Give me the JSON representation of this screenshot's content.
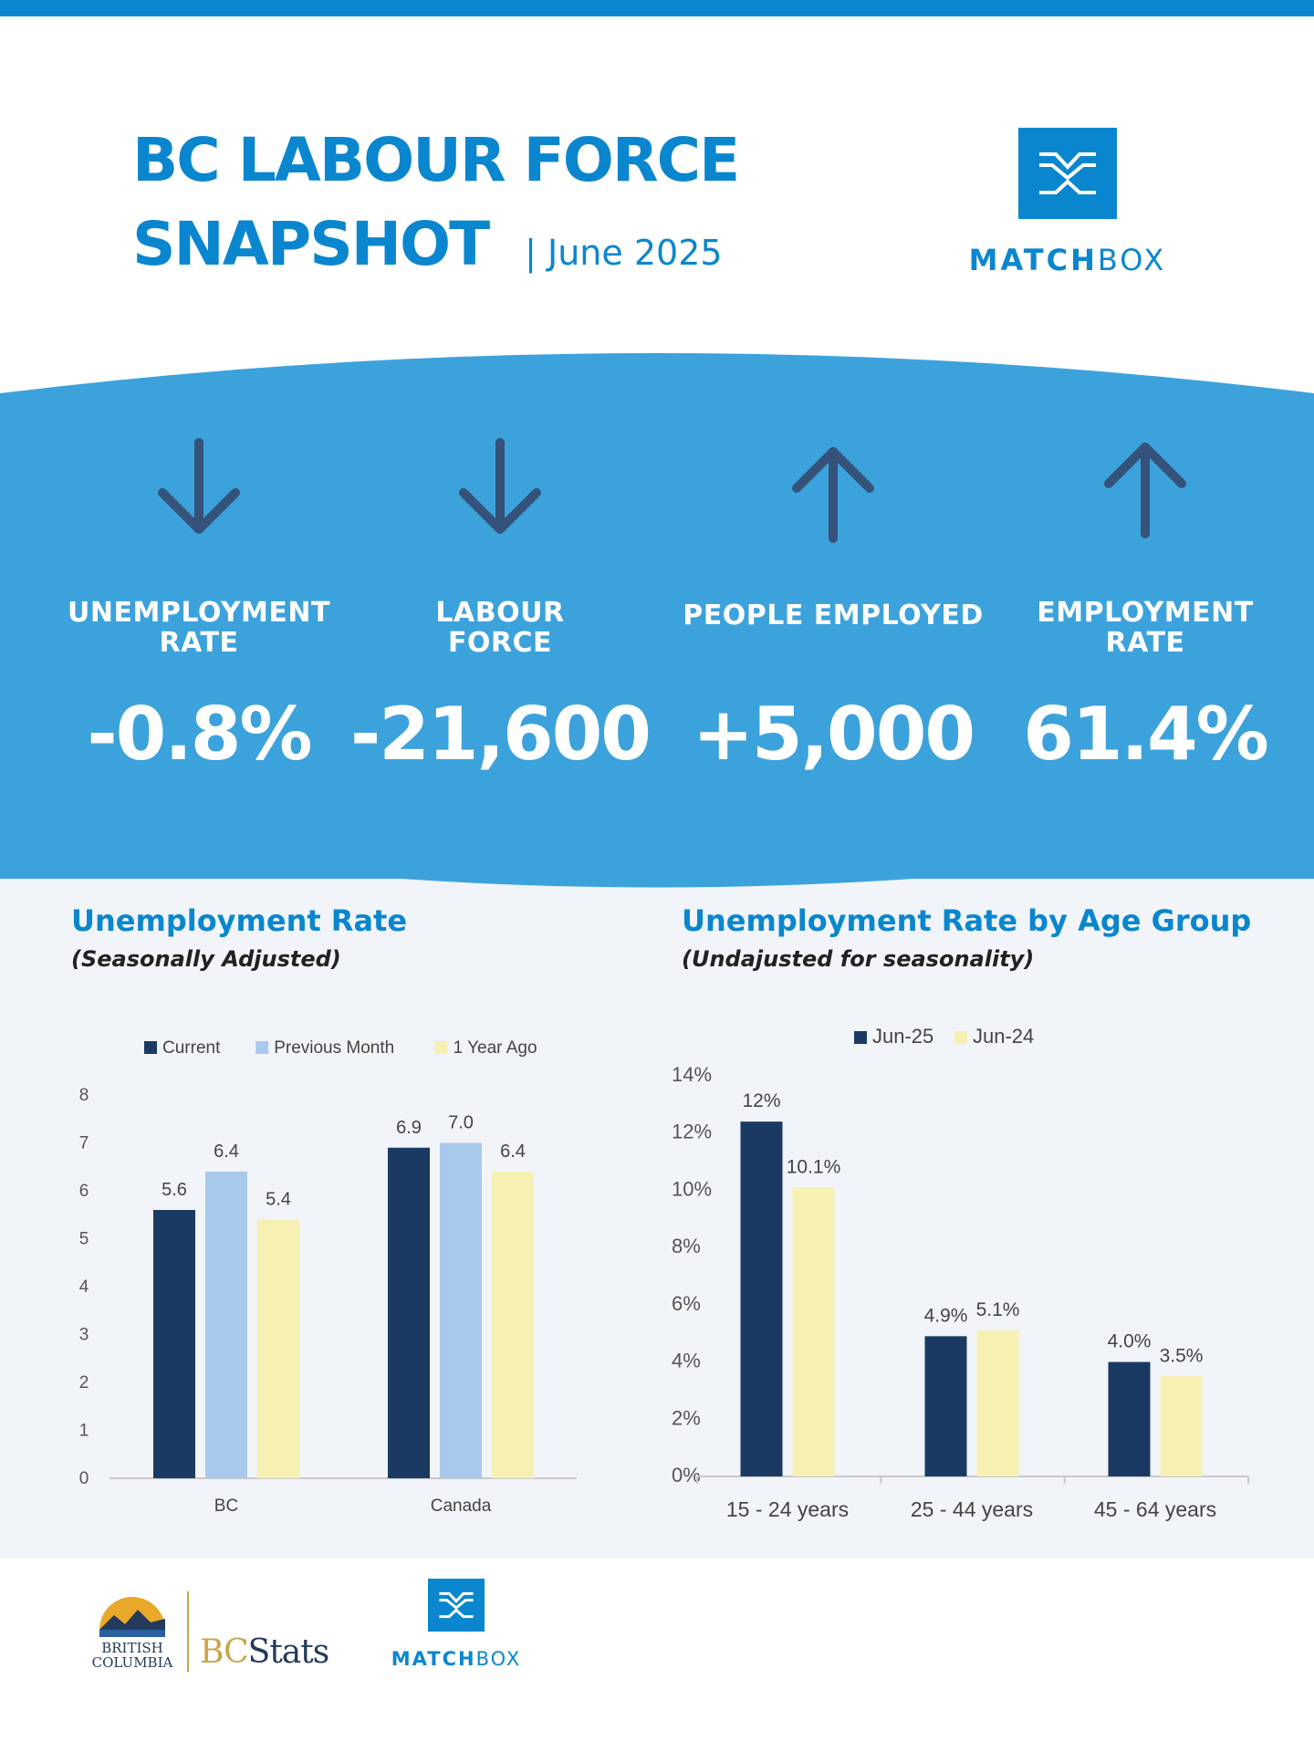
{
  "header": {
    "title_line1": "BC LABOUR FORCE",
    "title_line2": "SNAPSHOT",
    "date": "| June 2025"
  },
  "brand": {
    "name_bold": "MATCH",
    "name_light": "BOX"
  },
  "stats": [
    {
      "label_line1": "UNEMPLOYMENT",
      "label_line2": "RATE",
      "value": "-0.8%",
      "direction": "down"
    },
    {
      "label_line1": "LABOUR",
      "label_line2": "FORCE",
      "value": "-21,600",
      "direction": "down"
    },
    {
      "label_line1": "PEOPLE EMPLOYED",
      "label_line2": "",
      "value": "+5,000",
      "direction": "up"
    },
    {
      "label_line1": "EMPLOYMENT",
      "label_line2": "RATE",
      "value": "61.4%",
      "direction": "up"
    }
  ],
  "colors": {
    "brand_blue": "#0a86cf",
    "band_blue": "#3ca2dc",
    "navy": "#1b3a63",
    "light_blue": "#a9c9ec",
    "pale_yellow": "#f6f0b3",
    "arrow": "#34527a"
  },
  "charts": {
    "left": {
      "title": "Unemployment Rate",
      "subtitle": "(Seasonally Adjusted)"
    },
    "right": {
      "title": "Unemployment Rate by Age Group",
      "subtitle": "(Undajusted for seasonality)"
    }
  },
  "chart_data": [
    {
      "type": "bar",
      "title": "Unemployment Rate",
      "subtitle": "(Seasonally Adjusted)",
      "categories": [
        "BC",
        "Canada"
      ],
      "series": [
        {
          "name": "Current",
          "values": [
            5.6,
            6.9
          ],
          "color": "#1b3a63"
        },
        {
          "name": "Previous Month",
          "values": [
            6.4,
            7.0
          ],
          "color": "#a9c9ec"
        },
        {
          "name": "1 Year Ago",
          "values": [
            5.4,
            6.4
          ],
          "color": "#f6f0b3"
        }
      ],
      "data_labels": [
        [
          "5.6",
          "6.9"
        ],
        [
          "6.4",
          "7.0"
        ],
        [
          "5.4",
          "6.4"
        ]
      ],
      "yticks": [
        "0",
        "1",
        "2",
        "3",
        "4",
        "5",
        "6",
        "7",
        "8"
      ],
      "ylim": [
        0,
        8
      ],
      "legend": "top",
      "grid": false
    },
    {
      "type": "bar",
      "title": "Unemployment Rate by Age Group",
      "subtitle": "(Undajusted for seasonality)",
      "categories": [
        "15 - 24 years",
        "25 - 44 years",
        "45 - 64 years"
      ],
      "series": [
        {
          "name": "Jun-25",
          "values": [
            12.4,
            4.9,
            4.0
          ],
          "color": "#1b3a63"
        },
        {
          "name": "Jun-24",
          "values": [
            10.1,
            5.1,
            3.5
          ],
          "color": "#f6f0b3"
        }
      ],
      "data_labels": [
        [
          "12%",
          "4.9%",
          "4.0%"
        ],
        [
          "10.1%",
          "5.1%",
          "3.5%"
        ]
      ],
      "yticks": [
        "0%",
        "2%",
        "4%",
        "6%",
        "8%",
        "10%",
        "12%",
        "14%"
      ],
      "ylim": [
        0,
        14
      ],
      "legend": "top",
      "grid": false
    }
  ],
  "footer": {
    "bc_small_line1": "BRITISH",
    "bc_small_line2": "COLUMBIA",
    "bcstats_bc": "BC",
    "bcstats_stats": "Stats",
    "mb_bold": "MATCH",
    "mb_light": "BOX"
  }
}
